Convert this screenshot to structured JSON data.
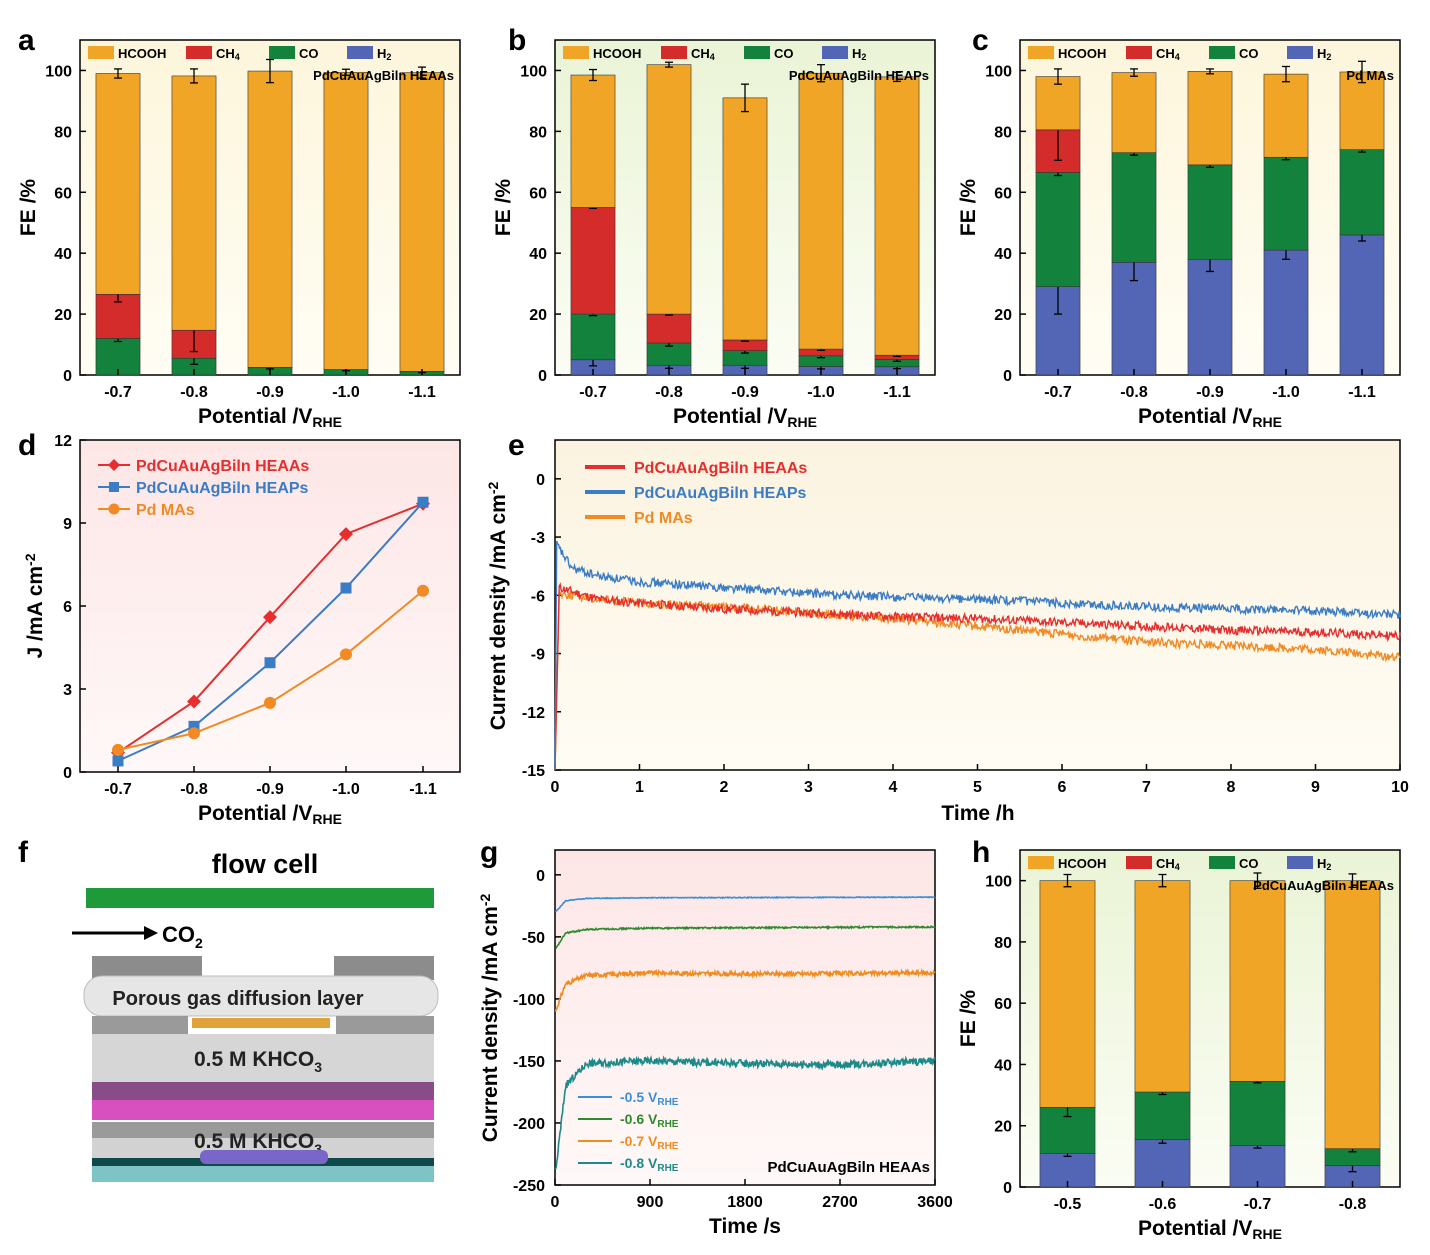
{
  "colors": {
    "HCOOH": "#f1a526",
    "CH4": "#d42b2b",
    "CO": "#12823c",
    "H2": "#5365b5",
    "HEAAs": "#e62e2e",
    "HEAPs": "#3a7cc6",
    "PdMAs": "#f18a24",
    "g05": "#3a8fd8",
    "g06": "#2f8a2f",
    "g07": "#f28a1e",
    "g08": "#1d8a8a"
  },
  "chart_data": [
    {
      "panel": "a",
      "type": "bar",
      "stacked": true,
      "title": "PdCuAuAgBiln HEAAs",
      "legend": [
        "HCOOH",
        "CH4",
        "CO",
        "H2"
      ],
      "categories": [
        "-0.7",
        "-0.8",
        "-0.9",
        "-1.0",
        "-1.1"
      ],
      "series": [
        {
          "name": "H2",
          "values": [
            0,
            0,
            0,
            0,
            0
          ]
        },
        {
          "name": "CO",
          "values": [
            12,
            5.5,
            2.5,
            1.8,
            1.2
          ]
        },
        {
          "name": "CH4",
          "values": [
            14.5,
            9.2,
            0,
            0,
            0
          ]
        },
        {
          "name": "HCOOH",
          "values": [
            72.5,
            83.5,
            97.3,
            97.6,
            98.1
          ]
        }
      ],
      "errors": {
        "CO": [
          1,
          2,
          0.5,
          0.4,
          0.4
        ],
        "CH4": [
          2.5,
          7,
          0,
          0,
          0
        ],
        "HCOOH": [
          1.5,
          2.3,
          3.8,
          1,
          1.8
        ]
      },
      "xlabel": "Potential /V",
      "xlabel_sub": "RHE",
      "ylabel": "FE /%",
      "ylim": [
        0,
        110
      ],
      "yticks": [
        0,
        20,
        40,
        60,
        80,
        100
      ]
    },
    {
      "panel": "b",
      "type": "bar",
      "stacked": true,
      "title": "PdCuAuAgBiln HEAPs",
      "legend": [
        "HCOOH",
        "CH4",
        "CO",
        "H2"
      ],
      "categories": [
        "-0.7",
        "-0.8",
        "-0.9",
        "-1.0",
        "-1.1"
      ],
      "series": [
        {
          "name": "H2",
          "values": [
            5,
            3.2,
            3.2,
            2.8,
            2.7
          ]
        },
        {
          "name": "CO",
          "values": [
            15,
            7.3,
            4.8,
            3.5,
            2.4
          ]
        },
        {
          "name": "CH4",
          "values": [
            35,
            9.5,
            3.5,
            2.2,
            1.4
          ]
        },
        {
          "name": "HCOOH",
          "values": [
            43.5,
            81.9,
            79.5,
            90.6,
            91.4
          ]
        }
      ],
      "errors": {
        "H2": [
          2,
          1,
          1,
          0.8,
          0.6
        ],
        "CO": [
          0.5,
          1,
          0.8,
          0.6,
          0.6
        ],
        "CH4": [
          0.3,
          0.3,
          0.4,
          0.4,
          0.4
        ],
        "HCOOH": [
          1.8,
          0.8,
          4.5,
          2.8,
          1.5
        ]
      },
      "xlabel": "Potential /V",
      "xlabel_sub": "RHE",
      "ylabel": "FE /%",
      "ylim": [
        0,
        110
      ],
      "yticks": [
        0,
        20,
        40,
        60,
        80,
        100
      ]
    },
    {
      "panel": "c",
      "type": "bar",
      "stacked": true,
      "title": "Pd MAs",
      "legend": [
        "HCOOH",
        "CH4",
        "CO",
        "H2"
      ],
      "categories": [
        "-0.7",
        "-0.8",
        "-0.9",
        "-1.0",
        "-1.1"
      ],
      "series": [
        {
          "name": "H2",
          "values": [
            29,
            37,
            38,
            41,
            46
          ]
        },
        {
          "name": "CO",
          "values": [
            37.5,
            36,
            31,
            30.5,
            28
          ]
        },
        {
          "name": "CH4",
          "values": [
            14,
            0,
            0,
            0,
            0
          ]
        },
        {
          "name": "HCOOH",
          "values": [
            17.5,
            26.3,
            30.7,
            27.3,
            25.5
          ]
        }
      ],
      "errors": {
        "H2": [
          9,
          6,
          4,
          3,
          2
        ],
        "CO": [
          1,
          0.8,
          0.8,
          0.8,
          0.8
        ],
        "CH4": [
          10,
          0,
          0,
          0,
          0
        ],
        "HCOOH": [
          2.5,
          1.2,
          0.8,
          2.5,
          3.5
        ]
      },
      "xlabel": "Potential /V",
      "xlabel_sub": "RHE",
      "ylabel": "FE /%",
      "ylim": [
        0,
        110
      ],
      "yticks": [
        0,
        20,
        40,
        60,
        80,
        100
      ]
    },
    {
      "panel": "d",
      "type": "line",
      "x": [
        "-0.7",
        "-0.8",
        "-0.9",
        "-1.0",
        "-1.1"
      ],
      "series": [
        {
          "name": "PdCuAuAgBiln HEAAs",
          "marker": "diamond",
          "values": [
            0.7,
            2.55,
            5.6,
            8.6,
            9.7
          ]
        },
        {
          "name": "PdCuAuAgBiln HEAPs",
          "marker": "square",
          "values": [
            0.4,
            1.65,
            3.95,
            6.65,
            9.75
          ]
        },
        {
          "name": "Pd MAs",
          "marker": "circle",
          "values": [
            0.8,
            1.4,
            2.5,
            4.25,
            6.55
          ]
        }
      ],
      "xlabel": "Potential /V",
      "xlabel_sub": "RHE",
      "ylabel": "J /mA cm",
      "ylabel_sup": "-2",
      "ylim": [
        0,
        12
      ],
      "yticks": [
        0,
        3,
        6,
        9,
        12
      ]
    },
    {
      "panel": "e",
      "type": "line",
      "series": [
        {
          "name": "PdCuAuAgBiln HEAAs",
          "points": [
            [
              0.05,
              -5.6
            ],
            [
              0.5,
              -6.2
            ],
            [
              1,
              -6.4
            ],
            [
              2,
              -6.7
            ],
            [
              3,
              -6.9
            ],
            [
              4,
              -7.1
            ],
            [
              5,
              -7.2
            ],
            [
              6,
              -7.4
            ],
            [
              7,
              -7.6
            ],
            [
              8,
              -7.8
            ],
            [
              9,
              -7.9
            ],
            [
              10,
              -8.1
            ]
          ]
        },
        {
          "name": "PdCuAuAgBiln HEAPs",
          "points": [
            [
              0.02,
              -3.4
            ],
            [
              0.2,
              -4.6
            ],
            [
              0.5,
              -5.0
            ],
            [
              1,
              -5.3
            ],
            [
              2,
              -5.6
            ],
            [
              3,
              -5.9
            ],
            [
              4,
              -6.1
            ],
            [
              5,
              -6.2
            ],
            [
              6,
              -6.4
            ],
            [
              7,
              -6.6
            ],
            [
              8,
              -6.7
            ],
            [
              9,
              -6.8
            ],
            [
              10,
              -7.0
            ]
          ]
        },
        {
          "name": "Pd MAs",
          "points": [
            [
              0.05,
              -5.9
            ],
            [
              0.5,
              -6.2
            ],
            [
              1,
              -6.4
            ],
            [
              2,
              -6.6
            ],
            [
              3,
              -6.9
            ],
            [
              4,
              -7.2
            ],
            [
              5,
              -7.6
            ],
            [
              6,
              -8.0
            ],
            [
              7,
              -8.4
            ],
            [
              8,
              -8.6
            ],
            [
              9,
              -8.8
            ],
            [
              10,
              -9.2
            ]
          ]
        }
      ],
      "xlabel": "Time /h",
      "ylabel": "Current density /mA cm",
      "ylabel_sup": "-2",
      "xlim": [
        0,
        10
      ],
      "ylim": [
        -15,
        2
      ],
      "xticks": [
        0,
        1,
        2,
        3,
        4,
        5,
        6,
        7,
        8,
        9,
        10
      ],
      "yticks": [
        0,
        -3,
        -6,
        -9,
        -12,
        -15
      ]
    },
    {
      "panel": "g",
      "type": "line",
      "title": "PdCuAuAgBiln HEAAs",
      "series": [
        {
          "name": "-0.5 V",
          "sub": "RHE",
          "points": [
            [
              5,
              -30
            ],
            [
              100,
              -21
            ],
            [
              300,
              -19
            ],
            [
              900,
              -18.5
            ],
            [
              3600,
              -18
            ]
          ]
        },
        {
          "name": "-0.6 V",
          "sub": "RHE",
          "points": [
            [
              5,
              -60
            ],
            [
              100,
              -47
            ],
            [
              300,
              -44
            ],
            [
              900,
              -43
            ],
            [
              3600,
              -42
            ]
          ]
        },
        {
          "name": "-0.7 V",
          "sub": "RHE",
          "points": [
            [
              5,
              -110
            ],
            [
              100,
              -88
            ],
            [
              300,
              -81
            ],
            [
              900,
              -79
            ],
            [
              1800,
              -80
            ],
            [
              3600,
              -79
            ]
          ]
        },
        {
          "name": "-0.8 V",
          "sub": "RHE",
          "points": [
            [
              5,
              -240
            ],
            [
              100,
              -170
            ],
            [
              300,
              -152
            ],
            [
              900,
              -150
            ],
            [
              1800,
              -152
            ],
            [
              2700,
              -153
            ],
            [
              3600,
              -150
            ]
          ]
        }
      ],
      "xlabel": "Time /s",
      "ylabel": "Current density /mA cm",
      "ylabel_sup": "-2",
      "xlim": [
        0,
        3600
      ],
      "ylim": [
        -250,
        20
      ],
      "xticks": [
        0,
        900,
        1800,
        2700,
        3600
      ],
      "yticks": [
        0,
        -50,
        -100,
        -150,
        -200,
        -250
      ]
    },
    {
      "panel": "h",
      "type": "bar",
      "stacked": true,
      "title": "PdCuAuAgBiln HEAAs",
      "legend": [
        "HCOOH",
        "CH4",
        "CO",
        "H2"
      ],
      "categories": [
        "-0.5",
        "-0.6",
        "-0.7",
        "-0.8"
      ],
      "series": [
        {
          "name": "H2",
          "values": [
            11,
            15.5,
            13.5,
            7
          ]
        },
        {
          "name": "CO",
          "values": [
            15,
            15.5,
            21,
            5.5
          ]
        },
        {
          "name": "CH4",
          "values": [
            0,
            0,
            0,
            0
          ]
        },
        {
          "name": "HCOOH",
          "values": [
            74,
            69,
            65.5,
            87.5
          ]
        }
      ],
      "errors": {
        "H2": [
          1,
          1.2,
          0.8,
          2
        ],
        "CO": [
          3,
          0.8,
          0.5,
          1
        ],
        "HCOOH": [
          2,
          2,
          2.5,
          2.2
        ]
      },
      "xlabel": "Potential /V",
      "xlabel_sub": "RHE",
      "ylabel": "FE /%",
      "ylim": [
        0,
        110
      ],
      "yticks": [
        0,
        20,
        40,
        60,
        80,
        100
      ]
    }
  ],
  "panel_f": {
    "title": "flow cell",
    "gas": "CO",
    "gas_sub": "2",
    "layer": "Porous gas diffusion layer",
    "electrolyte": "0.5 M KHCO",
    "electrolyte_sub": "3"
  }
}
